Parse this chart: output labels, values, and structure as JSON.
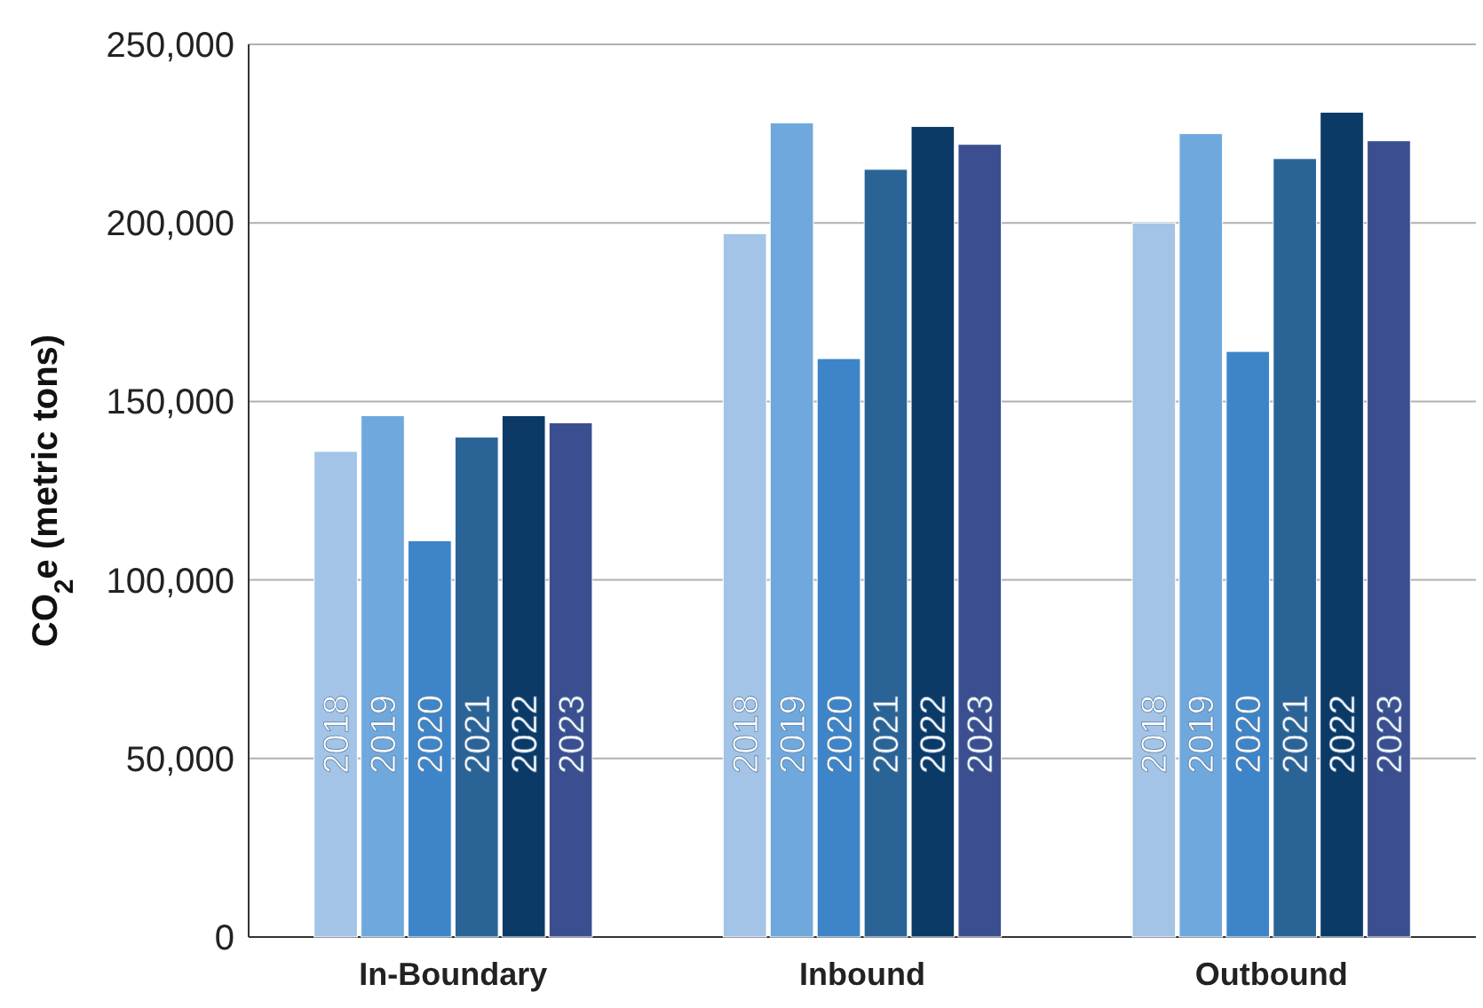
{
  "chart_data": {
    "type": "bar",
    "ylabel": "CO$_{2}$e (metric tons)",
    "categories": [
      "In-Boundary",
      "Inbound",
      "Outbound"
    ],
    "series": [
      {
        "name": "2018",
        "color": "#a3c4e6",
        "values": [
          136000,
          197000,
          200000
        ]
      },
      {
        "name": "2019",
        "color": "#6fa8dc",
        "values": [
          146000,
          228000,
          225000
        ]
      },
      {
        "name": "2020",
        "color": "#3d85c8",
        "values": [
          111000,
          162000,
          164000
        ]
      },
      {
        "name": "2021",
        "color": "#2a6496",
        "values": [
          140000,
          215000,
          218000
        ]
      },
      {
        "name": "2022",
        "color": "#0b3a66",
        "values": [
          146000,
          227000,
          231000
        ]
      },
      {
        "name": "2023",
        "color": "#3b4e90",
        "values": [
          144000,
          222000,
          223000
        ]
      }
    ],
    "ylim": [
      0,
      250000
    ],
    "yticks": [
      {
        "value": 0,
        "label": "0"
      },
      {
        "value": 50000,
        "label": "50,000"
      },
      {
        "value": 100000,
        "label": "100,000"
      },
      {
        "value": 150000,
        "label": "150,000"
      },
      {
        "value": 200000,
        "label": "200,000"
      },
      {
        "value": 250000,
        "label": "250,000"
      }
    ],
    "grid": "y"
  }
}
